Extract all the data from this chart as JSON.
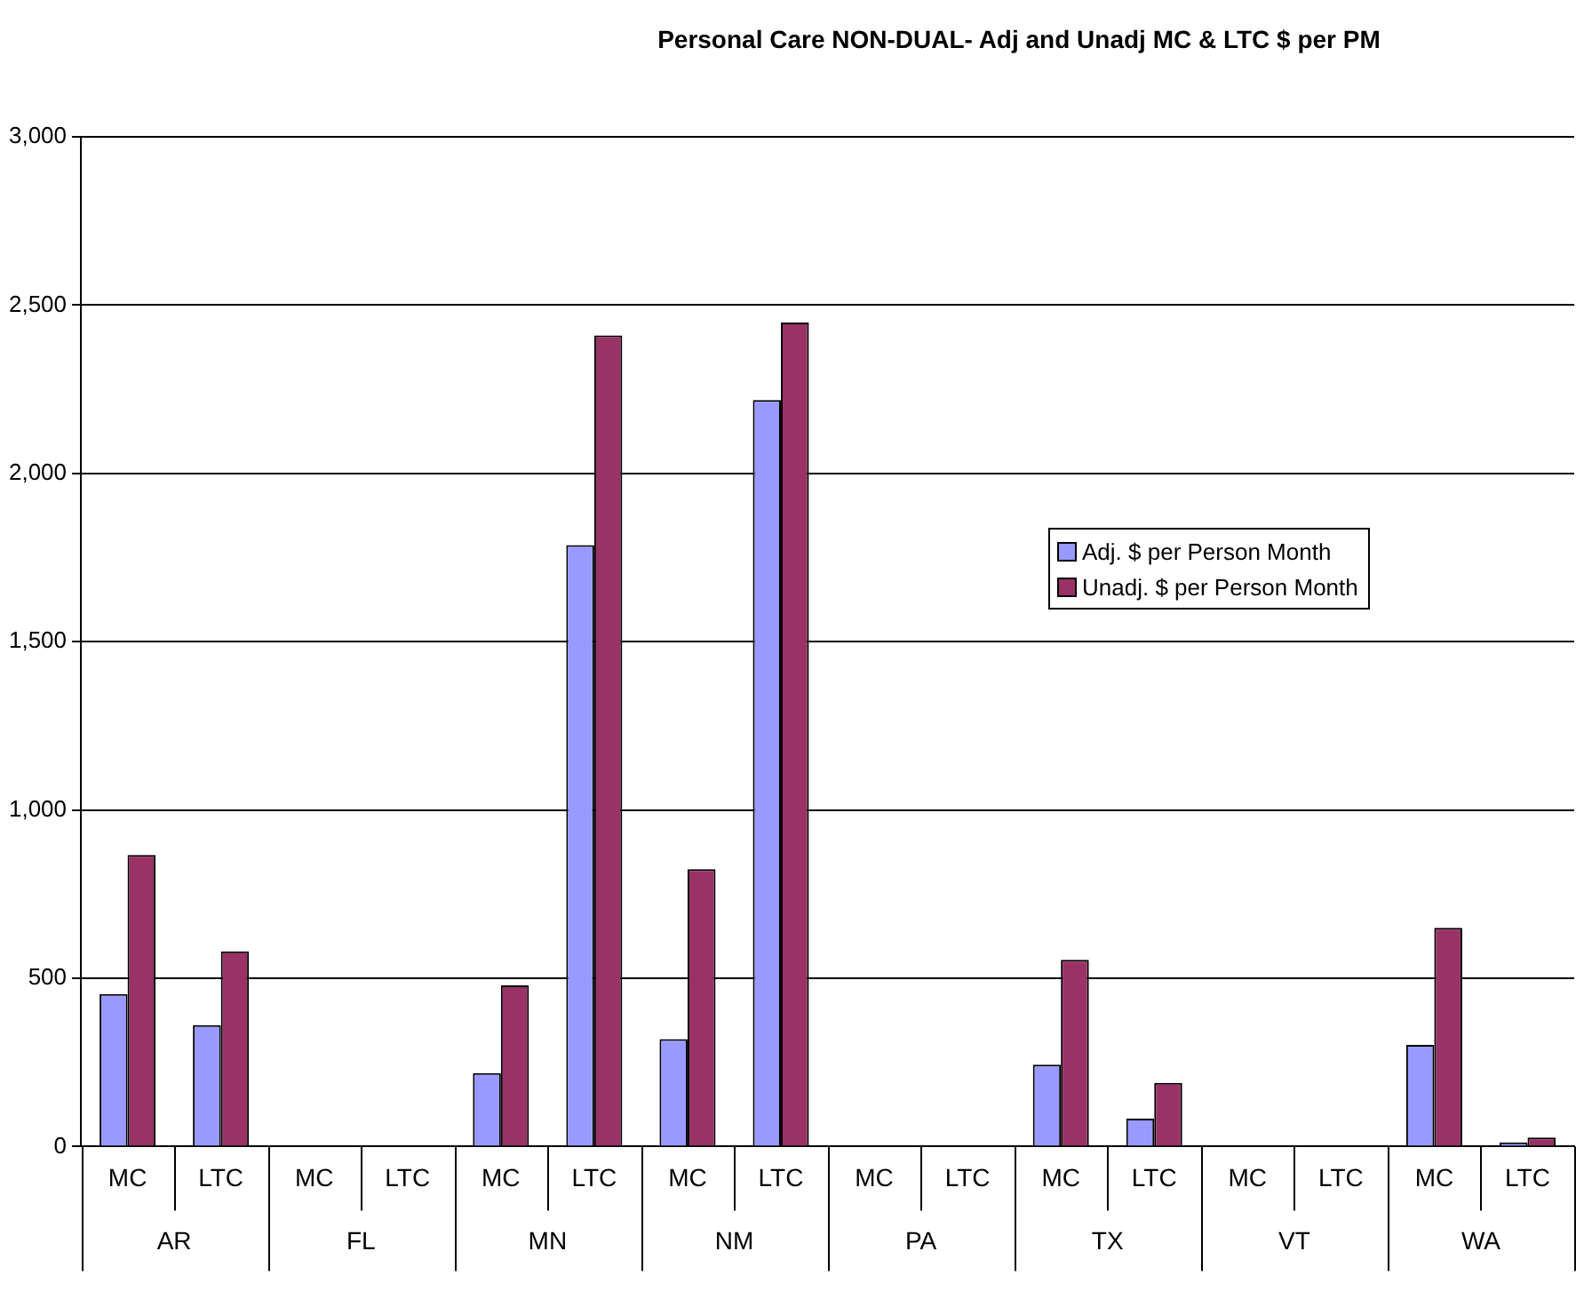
{
  "chart_data": {
    "type": "bar",
    "title": "Personal Care NON-DUAL- Adj and Unadj MC & LTC $ per PM",
    "categories": [
      "MC",
      "LTC",
      "MC",
      "LTC",
      "MC",
      "LTC",
      "MC",
      "LTC",
      "MC",
      "LTC",
      "MC",
      "LTC",
      "MC",
      "LTC",
      "MC",
      "LTC"
    ],
    "annotations": [
      "AR",
      "FL",
      "MN",
      "NM",
      "PA",
      "TX",
      "VT",
      "WA"
    ],
    "series": [
      {
        "name": "Adj. $ per Person Month",
        "color": "#9999ff",
        "values": [
          453,
          361,
          null,
          null,
          218,
          1787,
          319,
          2218,
          null,
          null,
          243,
          83,
          null,
          null,
          302,
          12
        ]
      },
      {
        "name": "Unadj. $ per Person Month",
        "color": "#993366",
        "values": [
          866,
          580,
          null,
          null,
          479,
          2410,
          824,
          2448,
          null,
          null,
          555,
          189,
          null,
          null,
          650,
          27
        ]
      }
    ],
    "ylim": [
      0,
      3000
    ],
    "yticks": [
      {
        "value": 0,
        "label": "0"
      },
      {
        "value": 500,
        "label": "500"
      },
      {
        "value": 1000,
        "label": "1,000"
      },
      {
        "value": 1500,
        "label": "1,500"
      },
      {
        "value": 2000,
        "label": "2,000"
      },
      {
        "value": 2500,
        "label": "2,500"
      },
      {
        "value": 3000,
        "label": "3,000"
      }
    ],
    "grid": "y",
    "legend": "right"
  }
}
